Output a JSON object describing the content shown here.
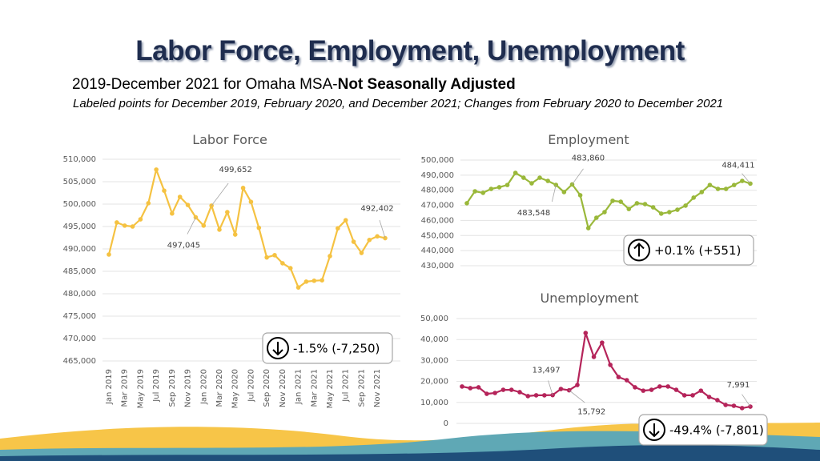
{
  "header": {
    "title": "Labor Force, Employment, Unemployment",
    "subtitle": "2019-December 2021 for Omaha MSA-",
    "subtitle_bold": "Not Seasonally Adjusted",
    "note": "Labeled points for December 2019, February 2020, and December 2021; Changes from February 2020 to December 2021"
  },
  "chart_data": [
    {
      "type": "line",
      "title": "Labor Force",
      "color": "#f5c242",
      "grid": true,
      "categories": [
        "Jan 2019",
        null,
        "Mar 2019",
        null,
        "May 2019",
        null,
        "Jul 2019",
        null,
        "Sep 2019",
        null,
        "Nov 2019",
        null,
        "Jan 2020",
        null,
        "Mar 2020",
        null,
        "May 2020",
        null,
        "Jul 2020",
        null,
        "Sep 2020",
        null,
        "Nov 2020",
        null,
        "Jan 2021",
        null,
        "Mar 2021",
        null,
        "May 2021",
        null,
        "Jul 2021",
        null,
        "Sep 2021",
        null,
        "Nov 2021",
        null
      ],
      "values": [
        488750,
        495900,
        495200,
        495000,
        496600,
        500200,
        507700,
        503000,
        497900,
        501600,
        499800,
        497045,
        495200,
        499652,
        494300,
        498200,
        493200,
        503600,
        500500,
        494700,
        488100,
        488600,
        486800,
        485700,
        481400,
        482700,
        482900,
        483000,
        488400,
        494600,
        496400,
        491600,
        489100,
        492000,
        492800,
        492402
      ],
      "value_labels": [
        null,
        null,
        null,
        null,
        null,
        null,
        null,
        null,
        null,
        null,
        null,
        "497,045",
        null,
        "499,652",
        null,
        null,
        null,
        null,
        null,
        null,
        null,
        null,
        null,
        null,
        null,
        null,
        null,
        null,
        null,
        null,
        null,
        null,
        null,
        null,
        null,
        "492,402"
      ],
      "ylim": [
        465000,
        510000
      ],
      "yticks": [
        {
          "value": 465000,
          "label": "465,000"
        },
        {
          "value": 470000,
          "label": "470,000"
        },
        {
          "value": 475000,
          "label": "475,000"
        },
        {
          "value": 480000,
          "label": "480,000"
        },
        {
          "value": 485000,
          "label": "485,000"
        },
        {
          "value": 490000,
          "label": "490,000"
        },
        {
          "value": 495000,
          "label": "495,000"
        },
        {
          "value": 500000,
          "label": "500,000"
        },
        {
          "value": 505000,
          "label": "505,000"
        },
        {
          "value": 510000,
          "label": "510,000"
        }
      ],
      "annotation": "-1.5% (-7,250)"
    },
    {
      "type": "line",
      "title": "Employment",
      "color": "#9ab83a",
      "grid": true,
      "values": [
        471400,
        479300,
        478300,
        480900,
        482000,
        483500,
        491500,
        488300,
        484600,
        488300,
        486200,
        483548,
        478800,
        483860,
        476700,
        454900,
        461800,
        465500,
        473000,
        472400,
        467600,
        471400,
        470800,
        468700,
        464500,
        465500,
        467100,
        469800,
        475100,
        478800,
        483500,
        480900,
        480900,
        483500,
        486200,
        484411
      ],
      "value_labels": [
        null,
        null,
        null,
        null,
        null,
        null,
        null,
        null,
        null,
        null,
        null,
        "483,548",
        null,
        "483,860",
        null,
        null,
        null,
        null,
        null,
        null,
        null,
        null,
        null,
        null,
        null,
        null,
        null,
        null,
        null,
        null,
        null,
        null,
        null,
        null,
        null,
        "484,411"
      ],
      "ylim": [
        430000,
        500000
      ],
      "yticks": [
        {
          "value": 430000,
          "label": "430,000"
        },
        {
          "value": 440000,
          "label": "440,000"
        },
        {
          "value": 450000,
          "label": "450,000"
        },
        {
          "value": 460000,
          "label": "460,000"
        },
        {
          "value": 470000,
          "label": "470,000"
        },
        {
          "value": 480000,
          "label": "480,000"
        },
        {
          "value": 490000,
          "label": "490,000"
        },
        {
          "value": 500000,
          "label": "500,000"
        }
      ],
      "annotation": "+0.1% (+551)"
    },
    {
      "type": "line",
      "title": "Unemployment",
      "color": "#b5245a",
      "grid": true,
      "values": [
        17600,
        16800,
        17200,
        14100,
        14500,
        16000,
        16000,
        14900,
        13000,
        13400,
        13400,
        13497,
        16400,
        15792,
        18300,
        43100,
        31700,
        38500,
        27900,
        22100,
        20600,
        17200,
        15600,
        16000,
        17600,
        17600,
        16000,
        13400,
        13400,
        15600,
        12600,
        11100,
        8800,
        8400,
        7300,
        7991
      ],
      "value_labels": [
        null,
        null,
        null,
        null,
        null,
        null,
        null,
        null,
        null,
        null,
        null,
        "13,497",
        null,
        "15,792",
        null,
        null,
        null,
        null,
        null,
        null,
        null,
        null,
        null,
        null,
        null,
        null,
        null,
        null,
        null,
        null,
        null,
        null,
        null,
        null,
        null,
        "7,991"
      ],
      "ylim": [
        0,
        50000
      ],
      "yticks": [
        0,
        {
          "value": 10000,
          "label": "10,000"
        },
        {
          "value": 20000,
          "label": "20,000"
        },
        {
          "value": 30000,
          "label": "30,000"
        },
        {
          "value": 40000,
          "label": "40,000"
        },
        {
          "value": 50000,
          "label": "50,000"
        }
      ],
      "annotation": "-49.4% (-7,801)"
    }
  ]
}
